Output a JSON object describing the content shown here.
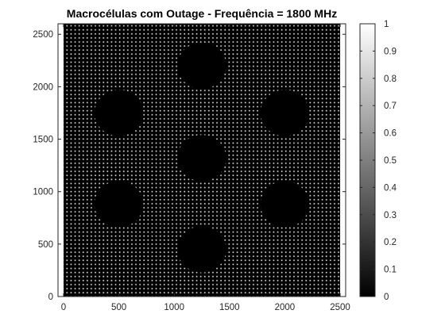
{
  "chart_data": {
    "type": "heatmap",
    "title": "Macrocélulas com Outage - Frequência  = 1800 MHz",
    "xlabel": "",
    "ylabel": "",
    "xlim": [
      -50,
      2550
    ],
    "ylim": [
      0,
      2600
    ],
    "data_extent": {
      "x": [
        0,
        2500
      ],
      "y": [
        0,
        2600
      ]
    },
    "x_ticks": [
      0,
      500,
      1000,
      1500,
      2000,
      2500
    ],
    "y_ticks": [
      0,
      500,
      1000,
      1500,
      2000,
      2500
    ],
    "grid": false,
    "colormap": "gray",
    "clim": [
      0,
      1
    ],
    "colorbar_ticks": [
      0,
      0.1,
      0.2,
      0.3,
      0.4,
      0.5,
      0.6,
      0.7,
      0.8,
      0.9,
      1
    ],
    "colorbar_tick_labels": [
      "0",
      "0.1",
      "0.2",
      "0.3",
      "0.4",
      "0.5",
      "0.6",
      "0.7",
      "0.8",
      "0.9",
      "1"
    ],
    "background_value": 0,
    "speckle": {
      "value": 1,
      "spacing_data_units": 10
    },
    "outage_cells": [
      {
        "x": 1250,
        "y": 2200,
        "radius": 220
      },
      {
        "x": 500,
        "y": 1750,
        "radius": 220
      },
      {
        "x": 2000,
        "y": 1750,
        "radius": 220
      },
      {
        "x": 1250,
        "y": 1320,
        "radius": 220
      },
      {
        "x": 500,
        "y": 880,
        "radius": 220
      },
      {
        "x": 2000,
        "y": 880,
        "radius": 220
      },
      {
        "x": 1250,
        "y": 450,
        "radius": 220
      }
    ]
  },
  "colors": {
    "axis": "#262626",
    "title": "#000000",
    "background": "#ffffff",
    "field_low": "#000000",
    "field_high": "#ffffff"
  }
}
